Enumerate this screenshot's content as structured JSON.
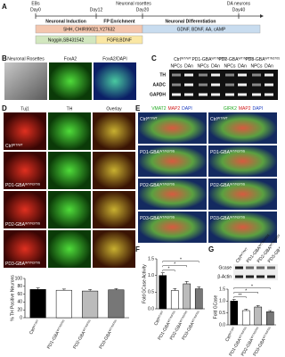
{
  "panel_letters": [
    "A",
    "B",
    "C",
    "D",
    "E",
    "F",
    "G"
  ],
  "lines": [
    {
      "name": "Ctrl",
      "genotype": "WT/WT"
    },
    {
      "name": "PD1-GBA",
      "genotype": "WT/N370S"
    },
    {
      "name": "PD2-GBA",
      "genotype": "WT/N370S"
    },
    {
      "name": "PD3-GBA",
      "genotype": "WT/N370S"
    }
  ],
  "timeline": {
    "stages": [
      "EBs",
      "Neuronal rosettes",
      "DA neurons"
    ],
    "days": [
      "Day0",
      "Day12",
      "Day20",
      "Day40"
    ],
    "phases": [
      "Neuronal Induction",
      "FP Enrichment",
      "Neuronal Differentiation"
    ],
    "media": [
      "SHH, CHIR99021,Y27632",
      "GDNF, BDNF, AA, cAMP",
      "Noggin,SB431542",
      "FGF8,BDNF"
    ]
  },
  "rosettes": {
    "headers": [
      "Neuronal Rosettes",
      "FoxA2",
      "FoxA2/DAPI"
    ]
  },
  "gel": {
    "columns": [
      "NPCs",
      "DAn"
    ],
    "rows": [
      "TH",
      "AADC",
      "GAPDH"
    ]
  },
  "staining": {
    "headers": [
      "Tuj1",
      "TH",
      "Overlay"
    ]
  },
  "markers": {
    "left": [
      "VMAT2",
      "MAP2",
      "DAPI"
    ],
    "right": [
      "GIRK2",
      "MAP2",
      "DAPI"
    ]
  },
  "blot": {
    "rows": [
      "Gcase",
      "β-Actin"
    ]
  },
  "chart_data": [
    {
      "type": "bar",
      "y_label": "% TH Positive Neurons",
      "categories": [
        "Ctrl",
        "PD1-GBA",
        "PD2-GBA",
        "PD3-GBA"
      ],
      "category_genotypes": [
        "WT/WT",
        "WT/N370S",
        "WT/N370S",
        "WT/N370S"
      ],
      "values": [
        72,
        70,
        68,
        71
      ],
      "errors": [
        4,
        3,
        4,
        3
      ],
      "colors": [
        "#000000",
        "#ffffff",
        "#bbbbbb",
        "#777777"
      ],
      "ylim": [
        0,
        100
      ],
      "yticks": [
        0,
        20,
        40,
        60,
        80,
        100
      ],
      "annotations": []
    },
    {
      "type": "bar",
      "y_label": "Fold GCase Activity",
      "categories": [
        "Ctrl",
        "PD1-GBA",
        "PD2-GBA",
        "PD3-GBA"
      ],
      "category_genotypes": [
        "WT/WT",
        "WT/N370S",
        "WT/N370S",
        "WT/N370S"
      ],
      "values": [
        1.0,
        0.55,
        0.75,
        0.6
      ],
      "errors": [
        0.08,
        0.06,
        0.07,
        0.06
      ],
      "colors": [
        "#000000",
        "#ffffff",
        "#bbbbbb",
        "#777777"
      ],
      "ylim": [
        0,
        1.5
      ],
      "yticks": [
        {
          "value": 0,
          "label": "0.0"
        },
        {
          "value": 0.5,
          "label": "0.5"
        },
        {
          "value": 1,
          "label": "1.0"
        },
        {
          "value": 1.5,
          "label": "1.5"
        }
      ],
      "annotations": [
        "*",
        "*",
        "*"
      ]
    },
    {
      "type": "bar",
      "y_label": "Fold GCase",
      "categories": [
        "Ctrl",
        "PD1-GBA",
        "PD2-GBA",
        "PD3-GBA"
      ],
      "category_genotypes": [
        "WT/WT",
        "WT/N370S",
        "WT/N370S",
        "WT/N370S"
      ],
      "values": [
        1.0,
        0.6,
        0.75,
        0.55
      ],
      "errors": [
        0.07,
        0.06,
        0.06,
        0.05
      ],
      "colors": [
        "#000000",
        "#ffffff",
        "#bbbbbb",
        "#777777"
      ],
      "ylim": [
        0,
        1.5
      ],
      "yticks": [
        {
          "value": 0,
          "label": "0.0"
        },
        {
          "value": 0.5,
          "label": "0.5"
        },
        {
          "value": 1,
          "label": "1.0"
        },
        {
          "value": 1.5,
          "label": "1.5"
        }
      ],
      "annotations": [
        "**",
        "*",
        "*"
      ]
    }
  ]
}
